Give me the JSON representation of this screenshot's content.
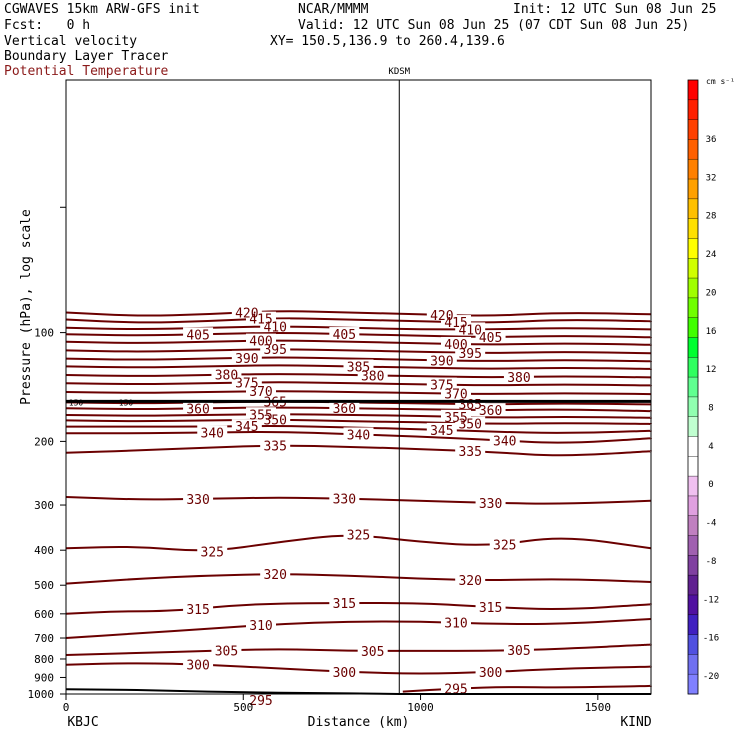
{
  "header": {
    "model": "CGWAVES 15km ARW-GFS init",
    "org": "NCAR/MMMM",
    "init": "Init: 12 UTC Sun 08 Jun 25",
    "fcst": "Fcst:   0 h",
    "valid": "Valid: 12 UTC Sun 08 Jun 25 (07 CDT Sun 08 Jun 25)",
    "field1": "Vertical velocity",
    "field2": "Boundary Layer Tracer",
    "field3": "Potential Temperature",
    "xy": "XY= 150.5,136.9 to 260.4,139.6"
  },
  "colors": {
    "contour": "#6b0000",
    "field3_text": "#8b1a1a"
  },
  "chart_data": {
    "type": "line",
    "station_label": "KDSM",
    "left_endpoint": "KBJC",
    "right_endpoint": "KIND",
    "xlabel": "Distance (km)",
    "ylabel": "Pressure (hPa), log scale",
    "xlim": [
      0,
      1650
    ],
    "ylim": [
      1000,
      20
    ],
    "x_ticks": [
      0,
      500,
      1000,
      1500
    ],
    "y_ticks": [
      100,
      200,
      300,
      400,
      500,
      600,
      700,
      800,
      900,
      1000
    ],
    "station_x": 940,
    "colorbar": {
      "unit": "cm s⁻¹",
      "ticks": [
        "36",
        "32",
        "28",
        "24",
        "20",
        "16",
        "12",
        "8",
        "4",
        "0",
        "-4",
        "-8",
        "-12",
        "-16",
        "-20"
      ],
      "colors": [
        "#ff0000",
        "#ff2000",
        "#ff4000",
        "#ff6000",
        "#ff8000",
        "#ffa000",
        "#ffc000",
        "#ffe000",
        "#ffff00",
        "#d0ff00",
        "#a0ff00",
        "#70ff00",
        "#40ff00",
        "#00ff30",
        "#30ff60",
        "#60ff90",
        "#90ffb0",
        "#c0ffd0",
        "#ffffff",
        "#ffffff",
        "#f0c0f0",
        "#e0a0e0",
        "#c080c0",
        "#a060b0",
        "#8040a0",
        "#602090",
        "#5010a0",
        "#4020c0",
        "#5050e0",
        "#7070f0",
        "#8080ff"
      ]
    },
    "series": [
      {
        "label_ids": [
          "420",
          "420"
        ],
        "x": [
          0,
          200,
          400,
          600,
          800,
          1000,
          1200,
          1400,
          1650
        ],
        "y": [
          88,
          90,
          89,
          87,
          88,
          89,
          90,
          88,
          89
        ]
      },
      {
        "label_ids": [
          "415",
          "415"
        ],
        "x": [
          0,
          200,
          400,
          600,
          800,
          1000,
          1200,
          1400,
          1650
        ],
        "y": [
          92,
          94,
          93,
          91,
          92,
          93,
          94,
          92,
          93
        ]
      },
      {
        "label_ids": [
          "410",
          "410"
        ],
        "x": [
          0,
          200,
          400,
          600,
          800,
          1000,
          1200,
          1400,
          1650
        ],
        "y": [
          97,
          98,
          97,
          96,
          97,
          98,
          98,
          97,
          98
        ]
      },
      {
        "label_ids": [
          "405",
          "405",
          "405"
        ],
        "x": [
          0,
          200,
          400,
          600,
          800,
          1000,
          1200,
          1400,
          1650
        ],
        "y": [
          101,
          102,
          101,
          100,
          101,
          102,
          103,
          102,
          103
        ]
      },
      {
        "label_ids": [
          "400",
          "400"
        ],
        "x": [
          0,
          200,
          400,
          600,
          800,
          1000,
          1200,
          1400,
          1650
        ],
        "y": [
          106,
          107,
          106,
          105,
          106,
          107,
          108,
          107,
          108
        ]
      },
      {
        "label_ids": [
          "395",
          "395"
        ],
        "x": [
          0,
          200,
          400,
          600,
          800,
          1000,
          1200,
          1400,
          1650
        ],
        "y": [
          112,
          113,
          112,
          111,
          112,
          113,
          114,
          113,
          114
        ]
      },
      {
        "label_ids": [
          "390",
          "390"
        ],
        "x": [
          0,
          200,
          400,
          600,
          800,
          1000,
          1200,
          1400,
          1650
        ],
        "y": [
          118,
          119,
          118,
          117,
          118,
          119,
          120,
          119,
          120
        ]
      },
      {
        "label_ids": [
          "385"
        ],
        "x": [
          0,
          200,
          400,
          600,
          800,
          1000,
          1200,
          1400,
          1650
        ],
        "y": [
          124,
          125,
          124,
          123,
          124,
          125,
          126,
          125,
          126
        ]
      },
      {
        "label_ids": [
          "380",
          "380",
          "380"
        ],
        "x": [
          0,
          200,
          400,
          600,
          800,
          1000,
          1200,
          1400,
          1650
        ],
        "y": [
          131,
          132,
          131,
          130,
          131,
          132,
          133,
          132,
          133
        ]
      },
      {
        "label_ids": [
          "375",
          "375"
        ],
        "x": [
          0,
          200,
          400,
          600,
          800,
          1000,
          1200,
          1400,
          1650
        ],
        "y": [
          138,
          139,
          138,
          137,
          138,
          139,
          140,
          139,
          140
        ]
      },
      {
        "label_ids": [
          "370",
          "370"
        ],
        "x": [
          0,
          200,
          400,
          600,
          800,
          1000,
          1200,
          1400,
          1650
        ],
        "y": [
          146,
          147,
          146,
          145,
          146,
          147,
          148,
          147,
          148
        ]
      },
      {
        "label_ids": [
          "365",
          "365"
        ],
        "x": [
          0,
          200,
          400,
          600,
          800,
          1000,
          1200,
          1400,
          1650
        ],
        "y": [
          156,
          157,
          156,
          155,
          156,
          157,
          158,
          157,
          158
        ]
      },
      {
        "label_ids": [
          "360",
          "360",
          "360"
        ],
        "x": [
          0,
          200,
          400,
          600,
          800,
          1000,
          1200,
          1400,
          1650
        ],
        "y": [
          162,
          163,
          162,
          161,
          162,
          163,
          164,
          163,
          165
        ]
      },
      {
        "label_ids": [
          "355",
          "355"
        ],
        "x": [
          0,
          200,
          400,
          600,
          800,
          1000,
          1200,
          1400,
          1650
        ],
        "y": [
          169,
          170,
          169,
          168,
          169,
          170,
          172,
          171,
          172
        ]
      },
      {
        "label_ids": [
          "350",
          "350"
        ],
        "x": [
          0,
          200,
          400,
          600,
          800,
          1000,
          1200,
          1400,
          1650
        ],
        "y": [
          175,
          176,
          175,
          174,
          176,
          177,
          179,
          178,
          179
        ]
      },
      {
        "label_ids": [
          "345",
          "345"
        ],
        "x": [
          0,
          200,
          400,
          600,
          800,
          1000,
          1200,
          1400,
          1650
        ],
        "y": [
          182,
          182,
          182,
          181,
          183,
          185,
          188,
          190,
          187
        ]
      },
      {
        "label_ids": [
          "340",
          "340",
          "340"
        ],
        "x": [
          0,
          200,
          400,
          600,
          800,
          1000,
          1200,
          1400,
          1650
        ],
        "y": [
          190,
          190,
          189,
          188,
          191,
          194,
          198,
          203,
          196
        ]
      },
      {
        "label_ids": [
          "335",
          "335"
        ],
        "x": [
          0,
          200,
          400,
          600,
          800,
          1000,
          1200,
          1400,
          1650
        ],
        "y": [
          215,
          212,
          208,
          205,
          207,
          210,
          214,
          220,
          213
        ]
      },
      {
        "label_ids": [
          "330",
          "330",
          "330"
        ],
        "x": [
          0,
          200,
          400,
          600,
          800,
          1000,
          1200,
          1400,
          1650
        ],
        "y": [
          285,
          290,
          288,
          286,
          288,
          292,
          296,
          298,
          292
        ]
      },
      {
        "label_ids": [
          "325",
          "325",
          "325"
        ],
        "x": [
          0,
          200,
          400,
          600,
          800,
          1000,
          1200,
          1400,
          1650
        ],
        "y": [
          395,
          390,
          405,
          380,
          360,
          380,
          390,
          365,
          395
        ]
      },
      {
        "label_ids": [
          "320",
          "320"
        ],
        "x": [
          0,
          200,
          400,
          600,
          800,
          1000,
          1200,
          1400,
          1650
        ],
        "y": [
          495,
          480,
          470,
          465,
          470,
          480,
          485,
          480,
          490
        ]
      },
      {
        "label_ids": [
          "315",
          "315",
          "315"
        ],
        "x": [
          0,
          150,
          300,
          500,
          700,
          1000,
          1200,
          1400,
          1650
        ],
        "y": [
          600,
          590,
          590,
          565,
          560,
          560,
          575,
          585,
          565
        ]
      },
      {
        "label_ids": [
          "310",
          "310"
        ],
        "x": [
          0,
          200,
          400,
          600,
          800,
          1000,
          1200,
          1400,
          1650
        ],
        "y": [
          700,
          680,
          660,
          640,
          630,
          630,
          640,
          640,
          620
        ]
      },
      {
        "label_ids": [
          "305",
          "305",
          "305"
        ],
        "x": [
          0,
          200,
          400,
          600,
          800,
          1000,
          1200,
          1400,
          1650
        ],
        "y": [
          780,
          770,
          760,
          750,
          760,
          760,
          760,
          750,
          730
        ]
      },
      {
        "label_ids": [
          "300",
          "300",
          "300"
        ],
        "x": [
          0,
          200,
          400,
          600,
          800,
          1000,
          1200,
          1400,
          1650
        ],
        "y": [
          830,
          820,
          830,
          850,
          870,
          880,
          870,
          850,
          840
        ]
      },
      {
        "label_ids": [
          "295",
          "295"
        ],
        "x": [
          950,
          1100,
          1250,
          1400,
          1650
        ],
        "y": [
          985,
          965,
          955,
          960,
          950
        ]
      }
    ],
    "tropopause_label": "150"
  }
}
